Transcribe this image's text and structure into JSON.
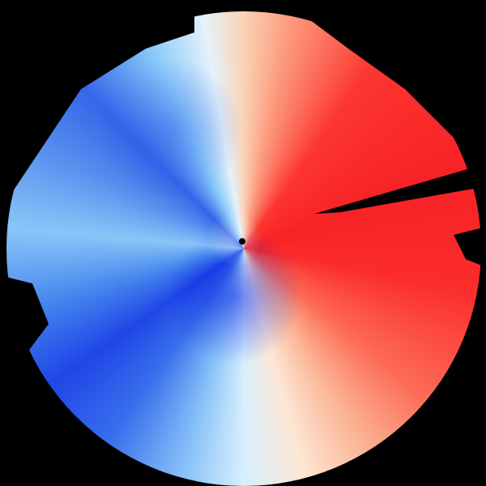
{
  "image": {
    "subject": "doppler-radar-velocity-scan",
    "colors": {
      "background": "#000000",
      "inbound": "#2346d8",
      "outbound": "#e8262a",
      "zero": "#fbe6d6"
    }
  }
}
